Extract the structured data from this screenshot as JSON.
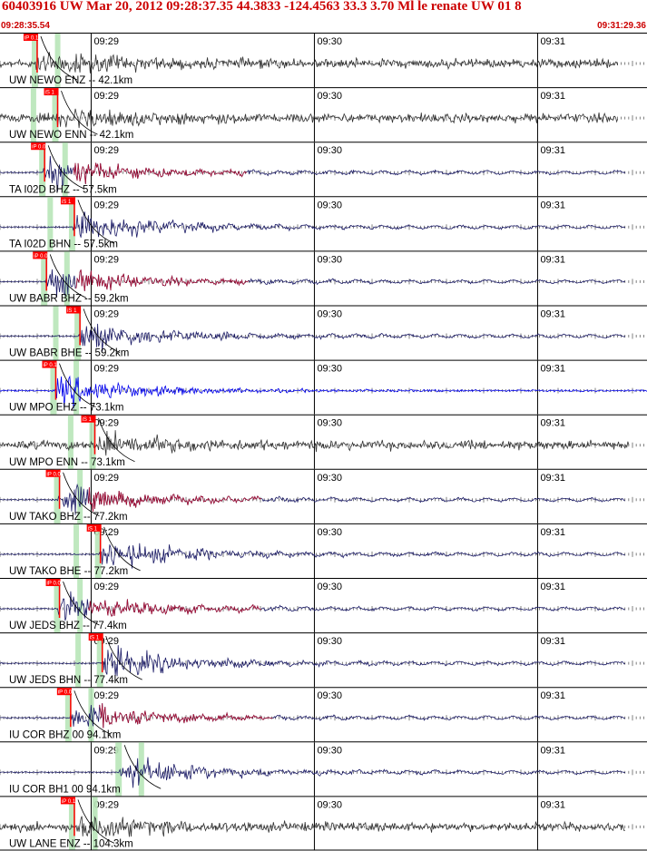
{
  "header": {
    "title": "60403916 UW Mar 20, 2012 09:28:37.35    44.3833 -124.4563 33.3 3.70 Ml le renate UW 01   8",
    "start_time": "09:28:35.54",
    "end_time": "09:31:29.36"
  },
  "colors": {
    "title": "#cc0000",
    "grid": "#000000",
    "pick_flag": "#ff0000",
    "pick_window": "#b8e6b8",
    "trace_gray": "#333333",
    "trace_navy": "#1a1a66",
    "trace_blue": "#0000ee",
    "trace_tail": "#aa1133",
    "theoretical_curve": "#000000"
  },
  "chart_data": {
    "type": "line",
    "title": "60403916 UW Mar 20, 2012 09:28:37.35    44.3833 -124.4563 33.3 3.70 Ml le renate UW 01   8",
    "xlabel": "",
    "ylabel": "",
    "x_range_seconds": [
      0,
      173.82
    ],
    "minute_ticks": [
      {
        "label": "09:29",
        "t": 24.5
      },
      {
        "label": "09:30",
        "t": 84.5
      },
      {
        "label": "09:31",
        "t": 144.5
      }
    ],
    "traces": [
      {
        "label": "UW NEWO ENZ -- 42.1km",
        "pick": "iP 0.1",
        "pick_t": 9.5,
        "style": "gray",
        "t_end": 166
      },
      {
        "label": "UW NEWO ENN -- 42.1km",
        "pick": "iS 1",
        "pick_t": 15.0,
        "style": "gray",
        "t_end": 166
      },
      {
        "label": "TA I02D BHZ -- 57.5km",
        "pick": "iP 0.0",
        "pick_t": 11.5,
        "style": "navy",
        "t_end": 168
      },
      {
        "label": "TA I02D BHN -- 57.5km",
        "pick": "iS 1",
        "pick_t": 19.5,
        "style": "navy",
        "t_end": 168
      },
      {
        "label": "UW BABR BHZ -- 59.2km",
        "pick": "iP 0.0",
        "pick_t": 12.0,
        "style": "navy",
        "t_end": 168
      },
      {
        "label": "UW BABR BHE -- 59.2km",
        "pick": "iS 1",
        "pick_t": 21.0,
        "style": "navy",
        "t_end": 168
      },
      {
        "label": "UW MPO EHZ -- 73.1km",
        "pick": "iP 0.1",
        "pick_t": 14.5,
        "style": "blue",
        "t_end": 174
      },
      {
        "label": "UW MPO ENN -- 73.1km",
        "pick": "iS 1",
        "pick_t": 25.0,
        "style": "gray",
        "t_end": 169
      },
      {
        "label": "UW TAKO BHZ -- 77.2km",
        "pick": "iP 0.0",
        "pick_t": 15.5,
        "style": "navy",
        "t_end": 168
      },
      {
        "label": "UW TAKO BHE -- 77.2km",
        "pick": "iS 1",
        "pick_t": 26.5,
        "style": "navy",
        "t_end": 168
      },
      {
        "label": "UW JEDS BHZ -- 77.4km",
        "pick": "iP 0.0",
        "pick_t": 15.5,
        "style": "navy",
        "t_end": 168
      },
      {
        "label": "UW JEDS BHN -- 77.4km",
        "pick": "iS 1",
        "pick_t": 27.0,
        "style": "navy",
        "t_end": 168
      },
      {
        "label": "IU COR BHZ 00 94.1km",
        "pick": "iP 0.0",
        "pick_t": 18.5,
        "style": "navy",
        "t_end": 168
      },
      {
        "label": "IU COR BH1 00 94.1km",
        "pick": "",
        "pick_t": 32.0,
        "style": "navy",
        "t_end": 168
      },
      {
        "label": "UW LANE ENZ -- 104.3km",
        "pick": "iP 0.1",
        "pick_t": 19.5,
        "style": "gray",
        "t_end": 168
      }
    ]
  }
}
